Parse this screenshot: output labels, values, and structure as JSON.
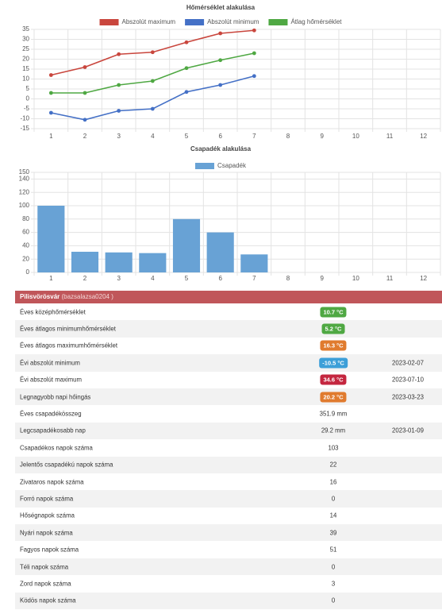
{
  "chart_data": [
    {
      "type": "line",
      "title": "Hőmérséklet alakulása",
      "categories": [
        "1",
        "2",
        "3",
        "4",
        "5",
        "6",
        "7",
        "8",
        "9",
        "10",
        "11",
        "12"
      ],
      "series": [
        {
          "name": "Abszolút maximum",
          "color": "#c9463d",
          "values": [
            12,
            16,
            22.5,
            23.5,
            28.5,
            33,
            34.5,
            null,
            null,
            null,
            null,
            null
          ]
        },
        {
          "name": "Abszolút minimum",
          "color": "#4470c6",
          "values": [
            -7,
            -10.5,
            -6,
            -5,
            3.5,
            7,
            11.5,
            null,
            null,
            null,
            null,
            null
          ]
        },
        {
          "name": "Átlag hőmérséklet",
          "color": "#4fa843",
          "values": [
            3,
            3,
            7,
            9,
            15.5,
            19.5,
            23,
            null,
            null,
            null,
            null,
            null
          ]
        }
      ],
      "ylim": [
        -15,
        35
      ],
      "yticks": [
        -15,
        -10,
        -5,
        0,
        5,
        10,
        15,
        20,
        25,
        30,
        35
      ],
      "grid": true
    },
    {
      "type": "bar",
      "title": "Csapadék alakulása",
      "categories": [
        "1",
        "2",
        "3",
        "4",
        "5",
        "6",
        "7",
        "8",
        "9",
        "10",
        "11",
        "12"
      ],
      "series": [
        {
          "name": "Csapadék",
          "color": "#68a2d5",
          "values": [
            100,
            31,
            30,
            29,
            80,
            60,
            27,
            null,
            null,
            null,
            null,
            null
          ]
        }
      ],
      "ylim": [
        0,
        150
      ],
      "yticks": [
        0,
        20,
        40,
        60,
        80,
        100,
        120,
        140,
        150
      ],
      "grid": true
    }
  ],
  "table": {
    "header": {
      "title": "Pilisvörösvár",
      "subtitle": "(bazsalazsa0204 )"
    },
    "rows": [
      {
        "label": "Éves középhőmérséklet",
        "value": "10.7 °C",
        "badge": "#4fa843"
      },
      {
        "label": "Éves átlagos minimumhőmérséklet",
        "value": "5.2 °C",
        "badge": "#4fa843"
      },
      {
        "label": "Éves átlagos maximumhőmérséklet",
        "value": "16.3 °C",
        "badge": "#e07b2e"
      },
      {
        "label": "Évi abszolút minimum",
        "value": "-10.5 °C",
        "badge": "#3d9fd8",
        "date": "2023-02-07"
      },
      {
        "label": "Évi abszolút maximum",
        "value": "34.6 °C",
        "badge": "#c4263f",
        "date": "2023-07-10"
      },
      {
        "label": "Legnagyobb napi hőingás",
        "value": "20.2 °C",
        "badge": "#e07b2e",
        "date": "2023-03-23"
      },
      {
        "label": "Éves csapadékösszeg",
        "value": "351.9 mm"
      },
      {
        "label": "Legcsapadékosabb nap",
        "value": "29.2 mm",
        "date": "2023-01-09"
      },
      {
        "label": "Csapadékos napok száma",
        "value": 103
      },
      {
        "label": "Jelentős csapadékú napok száma",
        "value": 22
      },
      {
        "label": "Zivataros napok száma",
        "value": 16
      },
      {
        "label": "Forró napok száma",
        "value": 0
      },
      {
        "label": "Hőségnapok száma",
        "value": 14
      },
      {
        "label": "Nyári napok száma",
        "value": 39
      },
      {
        "label": "Fagyos napok száma",
        "value": 51
      },
      {
        "label": "Téli napok száma",
        "value": 0
      },
      {
        "label": "Zord napok száma",
        "value": 3
      },
      {
        "label": "Ködös napok száma",
        "value": 0
      }
    ]
  }
}
